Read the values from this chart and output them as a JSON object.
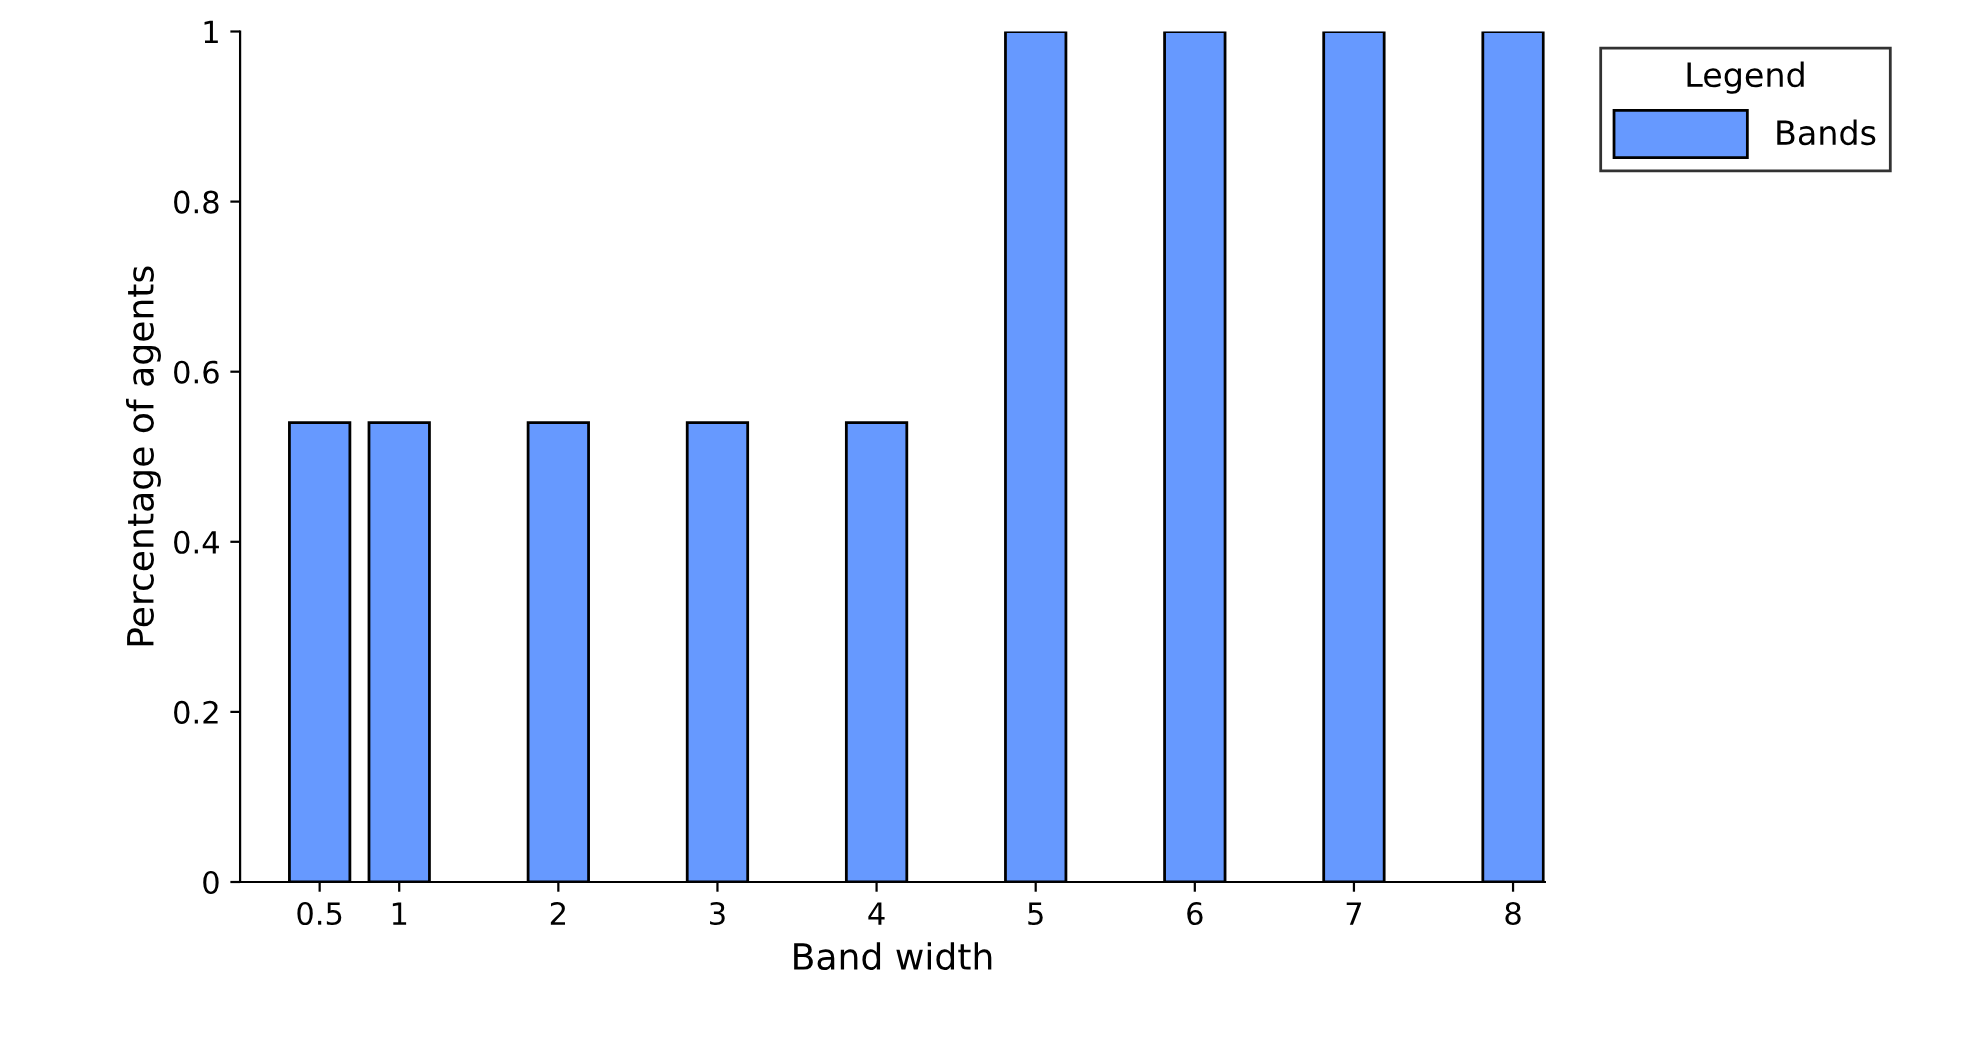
{
  "chart_data": {
    "type": "bar",
    "xlabel": "Band width",
    "ylabel": "Percentage of agents",
    "legend_title": "Legend",
    "x": [
      0.5,
      1,
      2,
      3,
      4,
      5,
      6,
      7,
      8
    ],
    "series": [
      {
        "name": "Bands",
        "color": "#6699ff",
        "values": [
          0.54,
          0.54,
          0.54,
          0.54,
          0.54,
          1,
          1,
          1,
          1
        ]
      }
    ],
    "xlim": [
      0,
      8.2
    ],
    "xticks": [
      0.5,
      1,
      2,
      3,
      4,
      5,
      6,
      7,
      8
    ],
    "ylim": [
      0,
      1
    ],
    "yticks": [
      0,
      0.2,
      0.4,
      0.6,
      0.8,
      1
    ],
    "grid": false,
    "legend": "top right"
  }
}
